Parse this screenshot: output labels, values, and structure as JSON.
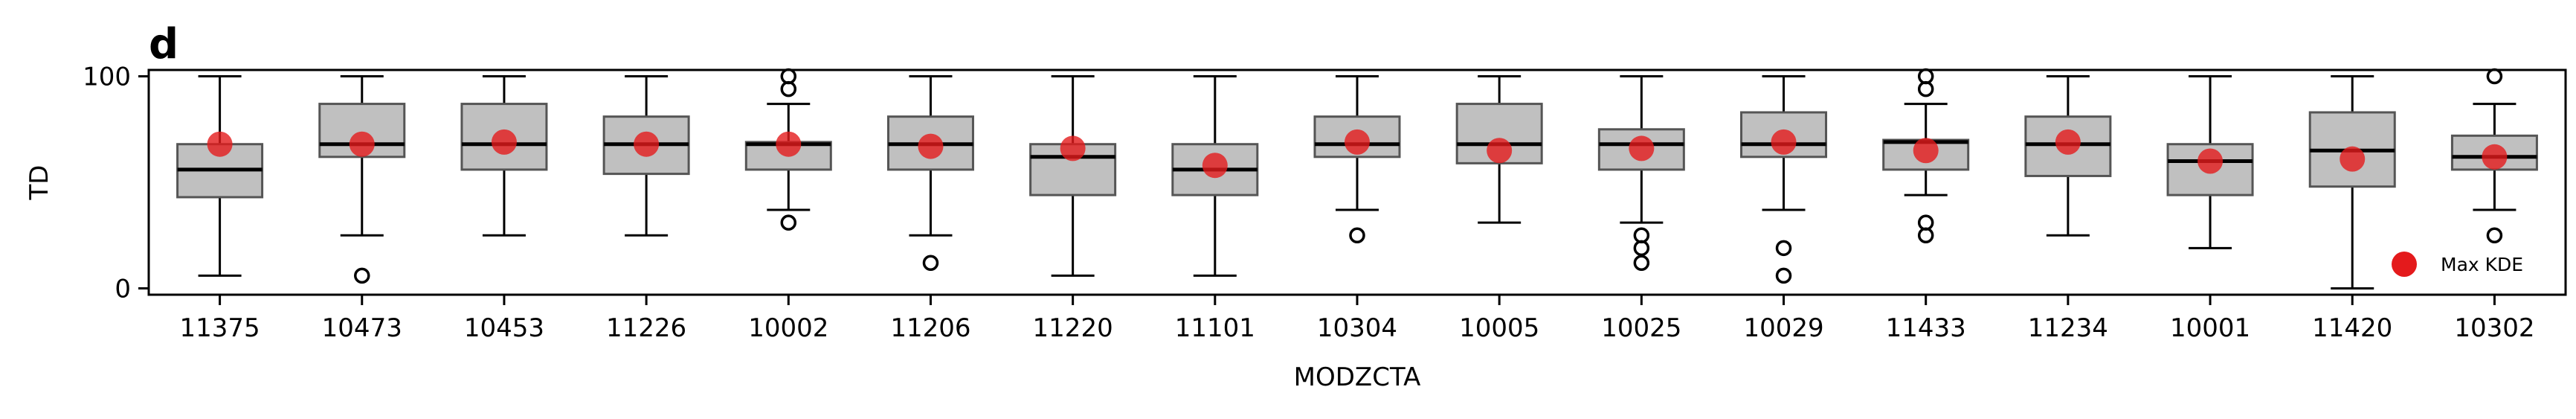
{
  "panel_label": "d",
  "chart_data": {
    "type": "box",
    "xlabel": "MODZCTA",
    "ylabel": "TD",
    "ylim": [
      -3,
      103
    ],
    "yticks": [
      0,
      100
    ],
    "legend": {
      "label": "Max KDE",
      "placement": "bottom-right"
    },
    "colors": {
      "box_fill": "#c0c0c0",
      "box_edge": "#555555",
      "median": "#000000",
      "max_kde": "#e41a1c"
    },
    "categories": [
      "11375",
      "10473",
      "10453",
      "11226",
      "10002",
      "11206",
      "11220",
      "11101",
      "10304",
      "10005",
      "10025",
      "10029",
      "11433",
      "11234",
      "10001",
      "11420",
      "10302"
    ],
    "boxes": [
      {
        "whislo": 6,
        "q1": 43,
        "med": 56,
        "q3": 68,
        "whishi": 100,
        "fliers": [],
        "max_kde": 68
      },
      {
        "whislo": 25,
        "q1": 62,
        "med": 68,
        "q3": 87,
        "whishi": 100,
        "fliers": [
          6
        ],
        "max_kde": 68
      },
      {
        "whislo": 25,
        "q1": 56,
        "med": 68,
        "q3": 87,
        "whishi": 100,
        "fliers": [],
        "max_kde": 69
      },
      {
        "whislo": 25,
        "q1": 54,
        "med": 68,
        "q3": 81,
        "whishi": 100,
        "fliers": [],
        "max_kde": 68
      },
      {
        "whislo": 37,
        "q1": 56,
        "med": 68,
        "q3": 69,
        "whishi": 87,
        "fliers": [
          31,
          94,
          100
        ],
        "max_kde": 68
      },
      {
        "whislo": 25,
        "q1": 56,
        "med": 68,
        "q3": 81,
        "whishi": 100,
        "fliers": [
          12
        ],
        "max_kde": 67
      },
      {
        "whislo": 6,
        "q1": 44,
        "med": 62,
        "q3": 68,
        "whishi": 100,
        "fliers": [],
        "max_kde": 66
      },
      {
        "whislo": 6,
        "q1": 44,
        "med": 56,
        "q3": 68,
        "whishi": 100,
        "fliers": [],
        "max_kde": 58
      },
      {
        "whislo": 37,
        "q1": 62,
        "med": 68,
        "q3": 81,
        "whishi": 100,
        "fliers": [
          25
        ],
        "max_kde": 69
      },
      {
        "whislo": 31,
        "q1": 59,
        "med": 68,
        "q3": 87,
        "whishi": 100,
        "fliers": [],
        "max_kde": 65
      },
      {
        "whislo": 31,
        "q1": 56,
        "med": 68,
        "q3": 75,
        "whishi": 100,
        "fliers": [
          12,
          19,
          25
        ],
        "max_kde": 66
      },
      {
        "whislo": 37,
        "q1": 62,
        "med": 68,
        "q3": 83,
        "whishi": 100,
        "fliers": [
          6,
          19
        ],
        "max_kde": 69
      },
      {
        "whislo": 44,
        "q1": 56,
        "med": 69,
        "q3": 70,
        "whishi": 87,
        "fliers": [
          25,
          31,
          94,
          100
        ],
        "max_kde": 65
      },
      {
        "whislo": 25,
        "q1": 53,
        "med": 68,
        "q3": 81,
        "whishi": 100,
        "fliers": [],
        "max_kde": 69
      },
      {
        "whislo": 19,
        "q1": 44,
        "med": 60,
        "q3": 68,
        "whishi": 100,
        "fliers": [],
        "max_kde": 60
      },
      {
        "whislo": 0,
        "q1": 48,
        "med": 65,
        "q3": 83,
        "whishi": 100,
        "fliers": [],
        "max_kde": 61
      },
      {
        "whislo": 37,
        "q1": 56,
        "med": 62,
        "q3": 72,
        "whishi": 87,
        "fliers": [
          25,
          100
        ],
        "max_kde": 62
      }
    ]
  }
}
